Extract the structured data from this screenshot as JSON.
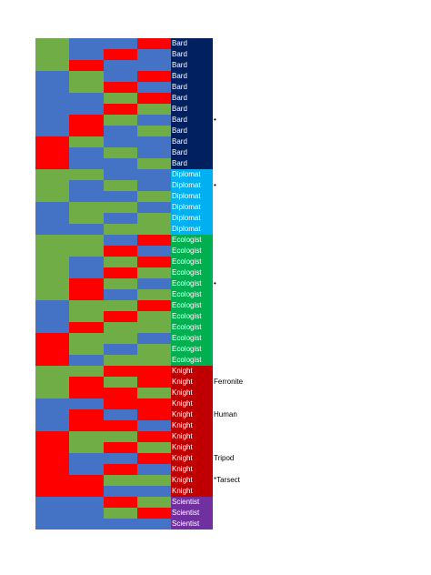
{
  "colors": {
    "R": "#ff0000",
    "G": "#70ad47",
    "B": "#4472c4",
    "Bard": "#002060",
    "Diplomat": "#00b0f0",
    "Ecologist": "#00b050",
    "Knight": "#c00000",
    "Scientist": "#7030a0"
  },
  "rows": [
    {
      "cells": [
        "G",
        "B",
        "B",
        "R"
      ],
      "role": "Bard"
    },
    {
      "cells": [
        "G",
        "B",
        "R",
        "B"
      ],
      "role": "Bard"
    },
    {
      "cells": [
        "G",
        "R",
        "B",
        "B"
      ],
      "role": "Bard"
    },
    {
      "cells": [
        "B",
        "G",
        "B",
        "R"
      ],
      "role": "Bard"
    },
    {
      "cells": [
        "B",
        "G",
        "R",
        "B"
      ],
      "role": "Bard"
    },
    {
      "cells": [
        "B",
        "B",
        "G",
        "R"
      ],
      "role": "Bard"
    },
    {
      "cells": [
        "B",
        "B",
        "R",
        "G"
      ],
      "role": "Bard"
    },
    {
      "cells": [
        "B",
        "R",
        "G",
        "B"
      ],
      "role": "Bard"
    },
    {
      "cells": [
        "B",
        "R",
        "B",
        "G"
      ],
      "role": "Bard"
    },
    {
      "cells": [
        "R",
        "G",
        "B",
        "B"
      ],
      "role": "Bard"
    },
    {
      "cells": [
        "R",
        "B",
        "G",
        "B"
      ],
      "role": "Bard"
    },
    {
      "cells": [
        "R",
        "B",
        "B",
        "G"
      ],
      "role": "Bard"
    },
    {
      "cells": [
        "G",
        "G",
        "B",
        "B"
      ],
      "role": "Diplomat"
    },
    {
      "cells": [
        "G",
        "B",
        "G",
        "B"
      ],
      "role": "Diplomat"
    },
    {
      "cells": [
        "G",
        "B",
        "B",
        "G"
      ],
      "role": "Diplomat"
    },
    {
      "cells": [
        "B",
        "G",
        "G",
        "B"
      ],
      "role": "Diplomat"
    },
    {
      "cells": [
        "B",
        "G",
        "B",
        "G"
      ],
      "role": "Diplomat"
    },
    {
      "cells": [
        "B",
        "B",
        "G",
        "G"
      ],
      "role": "Diplomat"
    },
    {
      "cells": [
        "G",
        "G",
        "B",
        "R"
      ],
      "role": "Ecologist"
    },
    {
      "cells": [
        "G",
        "G",
        "R",
        "B"
      ],
      "role": "Ecologist"
    },
    {
      "cells": [
        "G",
        "B",
        "G",
        "R"
      ],
      "role": "Ecologist"
    },
    {
      "cells": [
        "G",
        "B",
        "R",
        "G"
      ],
      "role": "Ecologist"
    },
    {
      "cells": [
        "G",
        "R",
        "G",
        "B"
      ],
      "role": "Ecologist"
    },
    {
      "cells": [
        "G",
        "R",
        "B",
        "G"
      ],
      "role": "Ecologist"
    },
    {
      "cells": [
        "B",
        "G",
        "G",
        "R"
      ],
      "role": "Ecologist"
    },
    {
      "cells": [
        "B",
        "G",
        "R",
        "G"
      ],
      "role": "Ecologist"
    },
    {
      "cells": [
        "B",
        "R",
        "G",
        "G"
      ],
      "role": "Ecologist"
    },
    {
      "cells": [
        "R",
        "G",
        "G",
        "B"
      ],
      "role": "Ecologist"
    },
    {
      "cells": [
        "R",
        "G",
        "B",
        "G"
      ],
      "role": "Ecologist"
    },
    {
      "cells": [
        "R",
        "B",
        "G",
        "G"
      ],
      "role": "Ecologist"
    },
    {
      "cells": [
        "G",
        "G",
        "R",
        "R"
      ],
      "role": "Knight"
    },
    {
      "cells": [
        "G",
        "R",
        "G",
        "R"
      ],
      "role": "Knight"
    },
    {
      "cells": [
        "G",
        "R",
        "R",
        "G"
      ],
      "role": "Knight"
    },
    {
      "cells": [
        "B",
        "B",
        "R",
        "R"
      ],
      "role": "Knight"
    },
    {
      "cells": [
        "B",
        "R",
        "B",
        "R"
      ],
      "role": "Knight"
    },
    {
      "cells": [
        "B",
        "R",
        "R",
        "B"
      ],
      "role": "Knight"
    },
    {
      "cells": [
        "R",
        "G",
        "G",
        "R"
      ],
      "role": "Knight"
    },
    {
      "cells": [
        "R",
        "G",
        "R",
        "G"
      ],
      "role": "Knight"
    },
    {
      "cells": [
        "R",
        "B",
        "B",
        "R"
      ],
      "role": "Knight"
    },
    {
      "cells": [
        "R",
        "B",
        "R",
        "B"
      ],
      "role": "Knight"
    },
    {
      "cells": [
        "R",
        "R",
        "G",
        "G"
      ],
      "role": "Knight"
    },
    {
      "cells": [
        "R",
        "R",
        "B",
        "B"
      ],
      "role": "Knight"
    },
    {
      "cells": [
        "B",
        "B",
        "R",
        "G"
      ],
      "role": "Scientist"
    },
    {
      "cells": [
        "B",
        "B",
        "G",
        "R"
      ],
      "role": "Scientist"
    },
    {
      "cells": [
        "B",
        "B",
        "B",
        "B"
      ],
      "role": "Scientist"
    }
  ],
  "side_labels": [
    {
      "text": "•",
      "row": 7
    },
    {
      "text": "•",
      "row": 13
    },
    {
      "text": "•",
      "row": 22
    },
    {
      "text": "Ferronite",
      "row": 31
    },
    {
      "text": "Human",
      "row": 34
    },
    {
      "text": "Tripod",
      "row": 38
    },
    {
      "text": "*Tarsect",
      "row": 40
    }
  ]
}
